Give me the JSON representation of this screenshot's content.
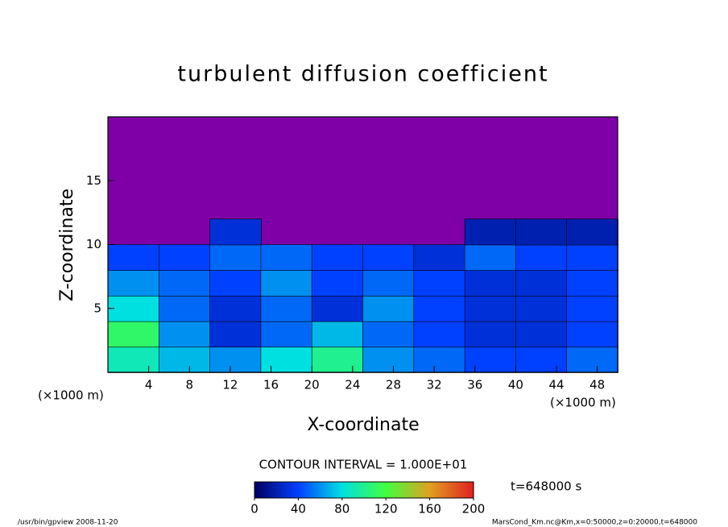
{
  "chart_data": {
    "type": "contour",
    "title": "turbulent diffusion coefficient",
    "x_label": "X-coordinate",
    "y_label": "Z-coordinate",
    "x_unit": "(×1000 m)",
    "y_unit": "(×1000 m)",
    "xlim": [
      0,
      50
    ],
    "ylim": [
      0,
      20
    ],
    "xticks": [
      4,
      8,
      12,
      16,
      20,
      24,
      28,
      32,
      36,
      40,
      44,
      48
    ],
    "yticks": [
      5,
      10,
      15
    ],
    "x": [
      2.5,
      7.5,
      12.5,
      17.5,
      22.5,
      27.5,
      32.5,
      37.5,
      42.5,
      47.5
    ],
    "y": [
      1,
      3,
      5,
      7,
      9,
      11,
      13,
      15,
      17,
      19
    ],
    "z": [
      [
        90,
        70,
        60,
        80,
        100,
        60,
        50,
        40,
        40,
        50
      ],
      [
        110,
        60,
        30,
        50,
        70,
        50,
        40,
        30,
        30,
        40
      ],
      [
        80,
        50,
        30,
        50,
        30,
        60,
        40,
        30,
        30,
        40
      ],
      [
        60,
        50,
        40,
        60,
        40,
        50,
        40,
        30,
        30,
        40
      ],
      [
        40,
        40,
        50,
        50,
        40,
        40,
        30,
        50,
        40,
        40
      ],
      [
        null,
        null,
        30,
        null,
        null,
        null,
        null,
        20,
        20,
        20
      ],
      [
        null,
        null,
        null,
        null,
        null,
        null,
        null,
        null,
        null,
        null
      ],
      [
        null,
        null,
        null,
        null,
        null,
        null,
        null,
        null,
        null,
        null
      ],
      [
        null,
        null,
        null,
        null,
        null,
        null,
        null,
        null,
        null,
        null
      ],
      [
        null,
        null,
        null,
        null,
        null,
        null,
        null,
        null,
        null,
        null
      ]
    ],
    "background": "#8000a8",
    "colormap": [
      "#000060",
      "#0040ff",
      "#00e0e0",
      "#40ff40",
      "#e0a020",
      "#e02020"
    ],
    "colorlim": [
      0,
      200
    ],
    "colorticks": [
      0,
      40,
      80,
      120,
      160,
      200
    ],
    "contour_interval": "CONTOUR INTERVAL = 1.000E+01",
    "time_label": "t=648000 s",
    "footer_left": "/usr/bin/gpview  2008-11-20",
    "footer_right": "MarsCond_Km.nc@Km,x=0:50000,z=0:20000,t=648000"
  }
}
